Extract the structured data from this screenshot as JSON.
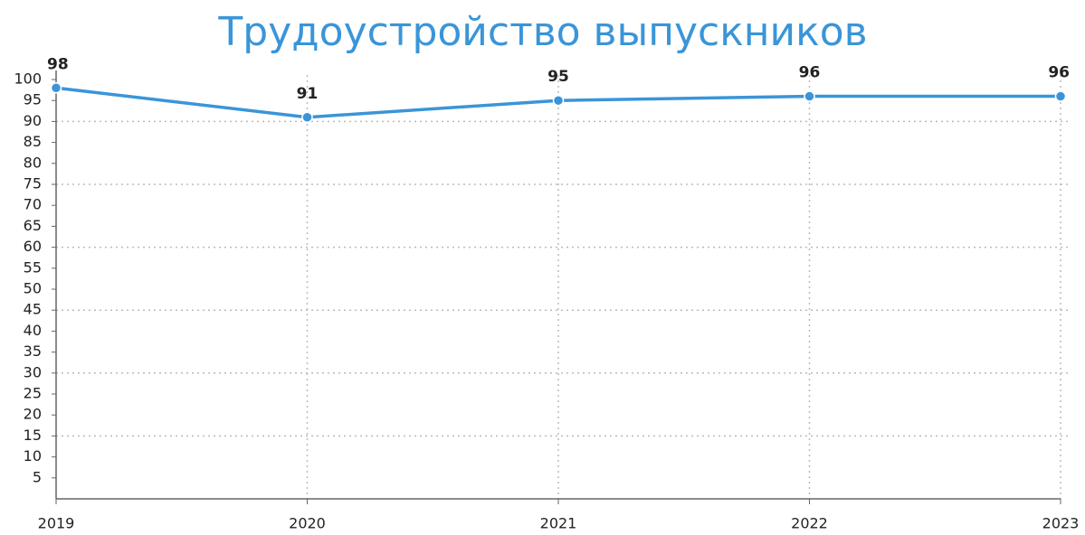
{
  "chart_data": {
    "type": "line",
    "title": "Трудоустройство выпускников",
    "categories": [
      "2019",
      "2020",
      "2021",
      "2022",
      "2023"
    ],
    "series": [
      {
        "color": "#3a95d8",
        "values": [
          98,
          91,
          95,
          96,
          96
        ]
      }
    ],
    "ylim": [
      0,
      100
    ],
    "yticks": [
      5,
      10,
      15,
      20,
      25,
      30,
      35,
      40,
      45,
      50,
      55,
      60,
      65,
      70,
      75,
      80,
      85,
      90,
      95,
      100
    ],
    "ygrid": [
      15,
      30,
      45,
      60,
      75,
      90
    ],
    "grid": true,
    "title_color": "#3a95d8"
  }
}
